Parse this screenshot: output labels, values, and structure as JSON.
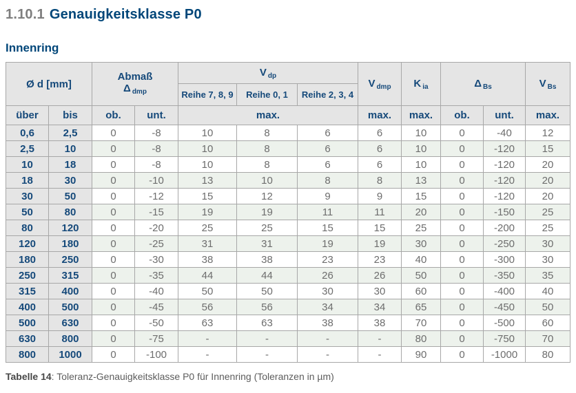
{
  "page": {
    "section_number": "1.10.1",
    "section_title": "Genauigkeitsklasse P0",
    "subtitle": "Innenring",
    "caption_label": "Tabelle 14",
    "caption_text": ": Toleranz-Genauigkeitsklasse P0 für Innenring (Toleranzen in µm)"
  },
  "colors": {
    "heading_blue": "#004679",
    "section_number_gray": "#7e7e7e",
    "header_cell_bg": "#e5e5e5",
    "row_stripe_green": "#edf2ec",
    "table_border": "#a7a7a7",
    "data_text_gray": "#6d6d6d"
  },
  "table": {
    "header": {
      "od": "Ø d  [mm]",
      "abmass_line1": "Abmaß",
      "abmass_sym": {
        "base": "Δ",
        "sub": "dmp"
      },
      "vdp": {
        "base": "V",
        "sub": "dp"
      },
      "vdmp": {
        "base": "V",
        "sub": "dmp"
      },
      "kia": {
        "base": "K",
        "sub": "ia"
      },
      "dbs": {
        "base": "Δ",
        "sub": "Bs"
      },
      "vbs": {
        "base": "V",
        "sub": "Bs"
      },
      "reihe_789": "Reihe 7, 8, 9",
      "reihe_01": "Reihe 0, 1",
      "reihe_234": "Reihe 2, 3, 4",
      "ueber": "über",
      "bis": "bis",
      "ob": "ob.",
      "unt": "unt.",
      "max": "max."
    },
    "columns": [
      "über",
      "bis",
      "Δdmp ob.",
      "Δdmp unt.",
      "Vdp Reihe 7,8,9 max.",
      "Vdp Reihe 0,1 max.",
      "Vdp Reihe 2,3,4 max.",
      "Vdmp max.",
      "Kia max.",
      "ΔBs ob.",
      "ΔBs unt.",
      "VBs max."
    ],
    "rows": [
      [
        "0,6",
        "2,5",
        "0",
        "-8",
        "10",
        "8",
        "6",
        "6",
        "10",
        "0",
        "-40",
        "12"
      ],
      [
        "2,5",
        "10",
        "0",
        "-8",
        "10",
        "8",
        "6",
        "6",
        "10",
        "0",
        "-120",
        "15"
      ],
      [
        "10",
        "18",
        "0",
        "-8",
        "10",
        "8",
        "6",
        "6",
        "10",
        "0",
        "-120",
        "20"
      ],
      [
        "18",
        "30",
        "0",
        "-10",
        "13",
        "10",
        "8",
        "8",
        "13",
        "0",
        "-120",
        "20"
      ],
      [
        "30",
        "50",
        "0",
        "-12",
        "15",
        "12",
        "9",
        "9",
        "15",
        "0",
        "-120",
        "20"
      ],
      [
        "50",
        "80",
        "0",
        "-15",
        "19",
        "19",
        "11",
        "11",
        "20",
        "0",
        "-150",
        "25"
      ],
      [
        "80",
        "120",
        "0",
        "-20",
        "25",
        "25",
        "15",
        "15",
        "25",
        "0",
        "-200",
        "25"
      ],
      [
        "120",
        "180",
        "0",
        "-25",
        "31",
        "31",
        "19",
        "19",
        "30",
        "0",
        "-250",
        "30"
      ],
      [
        "180",
        "250",
        "0",
        "-30",
        "38",
        "38",
        "23",
        "23",
        "40",
        "0",
        "-300",
        "30"
      ],
      [
        "250",
        "315",
        "0",
        "-35",
        "44",
        "44",
        "26",
        "26",
        "50",
        "0",
        "-350",
        "35"
      ],
      [
        "315",
        "400",
        "0",
        "-40",
        "50",
        "50",
        "30",
        "30",
        "60",
        "0",
        "-400",
        "40"
      ],
      [
        "400",
        "500",
        "0",
        "-45",
        "56",
        "56",
        "34",
        "34",
        "65",
        "0",
        "-450",
        "50"
      ],
      [
        "500",
        "630",
        "0",
        "-50",
        "63",
        "63",
        "38",
        "38",
        "70",
        "0",
        "-500",
        "60"
      ],
      [
        "630",
        "800",
        "0",
        "-75",
        "-",
        "-",
        "-",
        "-",
        "80",
        "0",
        "-750",
        "70"
      ],
      [
        "800",
        "1000",
        "0",
        "-100",
        "-",
        "-",
        "-",
        "-",
        "90",
        "0",
        "-1000",
        "80"
      ]
    ]
  }
}
